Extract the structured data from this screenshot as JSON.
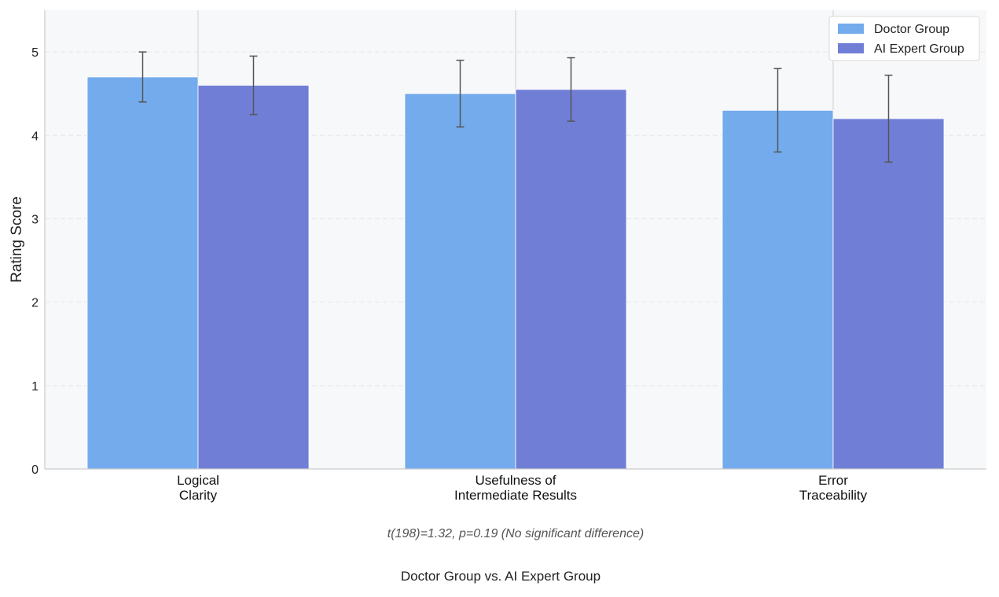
{
  "chart_data": {
    "type": "bar",
    "categories": [
      [
        "Logical",
        "Clarity"
      ],
      [
        "Usefulness of",
        "Intermediate Results"
      ],
      [
        "Error",
        "Traceability"
      ]
    ],
    "series": [
      {
        "name": "Doctor Group",
        "color": "#74abed",
        "values": [
          4.7,
          4.5,
          4.3
        ],
        "errors": [
          0.3,
          0.4,
          0.5
        ]
      },
      {
        "name": "AI Expert Group",
        "color": "#717ed6",
        "values": [
          4.6,
          4.55,
          4.2
        ],
        "errors": [
          0.35,
          0.38,
          0.52
        ]
      }
    ],
    "ylabel": "Rating Score",
    "xlabel": "Doctor Group vs. AI Expert Group",
    "annotation": "t(198)=1.32, p=0.19 (No significant difference)",
    "ylim": [
      0,
      5.5
    ],
    "yticks": [
      0,
      1,
      2,
      3,
      4,
      5
    ],
    "legend_position": "top-right",
    "grid": true,
    "background_color": "#f7f8fa"
  }
}
